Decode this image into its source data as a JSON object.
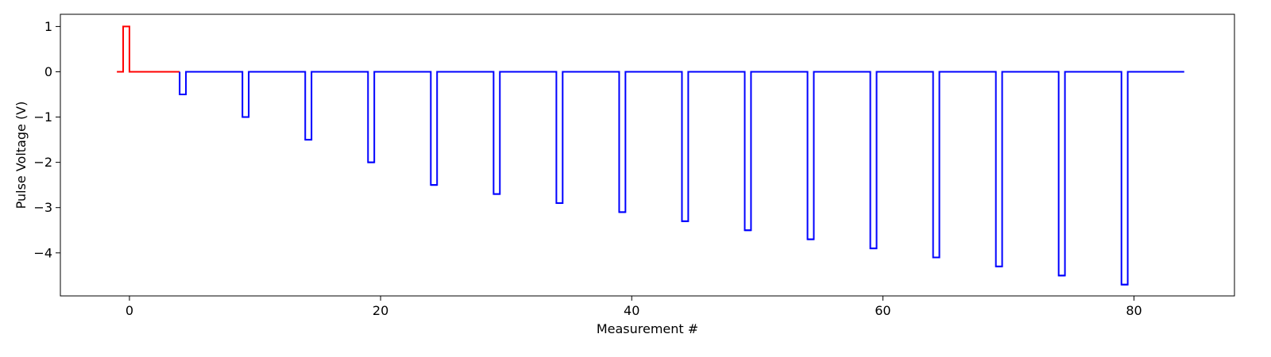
{
  "chart_data": {
    "type": "line",
    "title": "",
    "xlabel": "Measurement #",
    "ylabel": "Pulse Voltage (V)",
    "xlim": [
      -5.5,
      88
    ],
    "ylim": [
      -4.95,
      1.27
    ],
    "xticks": [
      0,
      20,
      40,
      60,
      80
    ],
    "yticks": [
      1,
      0,
      -1,
      -2,
      -3,
      -4
    ],
    "tick_labels_x": [
      "0",
      "20",
      "40",
      "60",
      "80"
    ],
    "tick_labels_y": [
      "1",
      "0",
      "−1",
      "−2",
      "−3",
      "−4"
    ],
    "grid": false,
    "legend": "none",
    "line_style": "step",
    "series": [
      {
        "color": "#ff0000",
        "x": [
          -1,
          -0.5,
          0,
          4
        ],
        "y": [
          0,
          1,
          0,
          0
        ]
      },
      {
        "color": "#0000ff",
        "pulse_x": [
          4,
          9,
          14,
          19,
          24,
          29,
          34,
          39,
          44,
          49,
          54,
          59,
          64,
          69,
          74,
          79
        ],
        "pulse_y": [
          -0.5,
          -1.0,
          -1.5,
          -2.0,
          -2.5,
          -2.7,
          -2.9,
          -3.1,
          -3.3,
          -3.5,
          -3.7,
          -3.9,
          -4.1,
          -4.3,
          -4.5,
          -4.7
        ],
        "pulse_width": 0.5,
        "baseline": 0,
        "x_end": 84
      }
    ]
  }
}
